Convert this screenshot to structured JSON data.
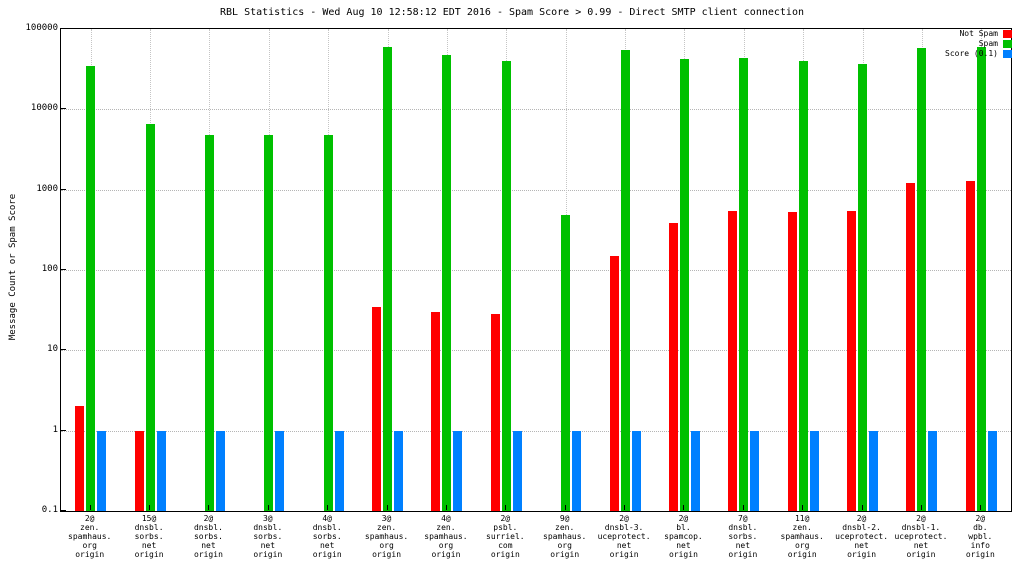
{
  "title": "RBL Statistics - Wed Aug 10 12:58:12 EDT 2016 - Spam Score > 0.99 - Direct SMTP client connection",
  "ylabel": "Message Count or Spam Score",
  "legend": [
    {
      "label": "Not Spam",
      "color": "#ff0000"
    },
    {
      "label": "Spam",
      "color": "#00c000"
    },
    {
      "label": "Score (0.1)",
      "color": "#0080ff"
    }
  ],
  "chart_data": {
    "type": "bar",
    "scale": "log",
    "ylim": [
      0.1,
      100000
    ],
    "yticks": [
      "100000",
      "10000",
      "1000",
      "100",
      "10",
      "1",
      "0.1"
    ],
    "grid": true,
    "legend_position": "top-right",
    "categories": [
      [
        "2@",
        "zen.",
        "spamhaus.",
        "org",
        "origin"
      ],
      [
        "15@",
        "dnsbl.",
        "sorbs.",
        "net",
        "origin"
      ],
      [
        "2@",
        "dnsbl.",
        "sorbs.",
        "net",
        "origin"
      ],
      [
        "3@",
        "dnsbl.",
        "sorbs.",
        "net",
        "origin"
      ],
      [
        "4@",
        "dnsbl.",
        "sorbs.",
        "net",
        "origin"
      ],
      [
        "3@",
        "zen.",
        "spamhaus.",
        "org",
        "origin"
      ],
      [
        "4@",
        "zen.",
        "spamhaus.",
        "org",
        "origin"
      ],
      [
        "2@",
        "psbl.",
        "surriel.",
        "com",
        "origin"
      ],
      [
        "9@",
        "zen.",
        "spamhaus.",
        "org",
        "origin"
      ],
      [
        "2@",
        "dnsbl-3.",
        "uceprotect.",
        "net",
        "origin"
      ],
      [
        "2@",
        "bl.",
        "spamcop.",
        "net",
        "origin"
      ],
      [
        "7@",
        "dnsbl.",
        "sorbs.",
        "net",
        "origin"
      ],
      [
        "11@",
        "zen.",
        "spamhaus.",
        "org",
        "origin"
      ],
      [
        "2@",
        "dnsbl-2.",
        "uceprotect.",
        "net",
        "origin"
      ],
      [
        "2@",
        "dnsbl-1.",
        "uceprotect.",
        "net",
        "origin"
      ],
      [
        "2@",
        "db.",
        "wpbl.",
        "info",
        "origin"
      ]
    ],
    "series": [
      {
        "name": "Not Spam",
        "color": "#ff0000",
        "values": [
          2,
          1,
          0,
          0,
          0,
          35,
          30,
          28,
          0,
          150,
          380,
          550,
          520,
          550,
          1200,
          1300
        ]
      },
      {
        "name": "Spam",
        "color": "#00c000",
        "values": [
          35000,
          6500,
          4800,
          4800,
          4800,
          60000,
          48000,
          40000,
          480,
          55000,
          42000,
          43000,
          40000,
          37000,
          58000,
          60000
        ]
      },
      {
        "name": "Score (0.1)",
        "color": "#0080ff",
        "values": [
          1,
          1,
          1,
          1,
          1,
          1,
          1,
          1,
          1,
          1,
          1,
          1,
          1,
          1,
          1,
          1
        ]
      }
    ]
  }
}
